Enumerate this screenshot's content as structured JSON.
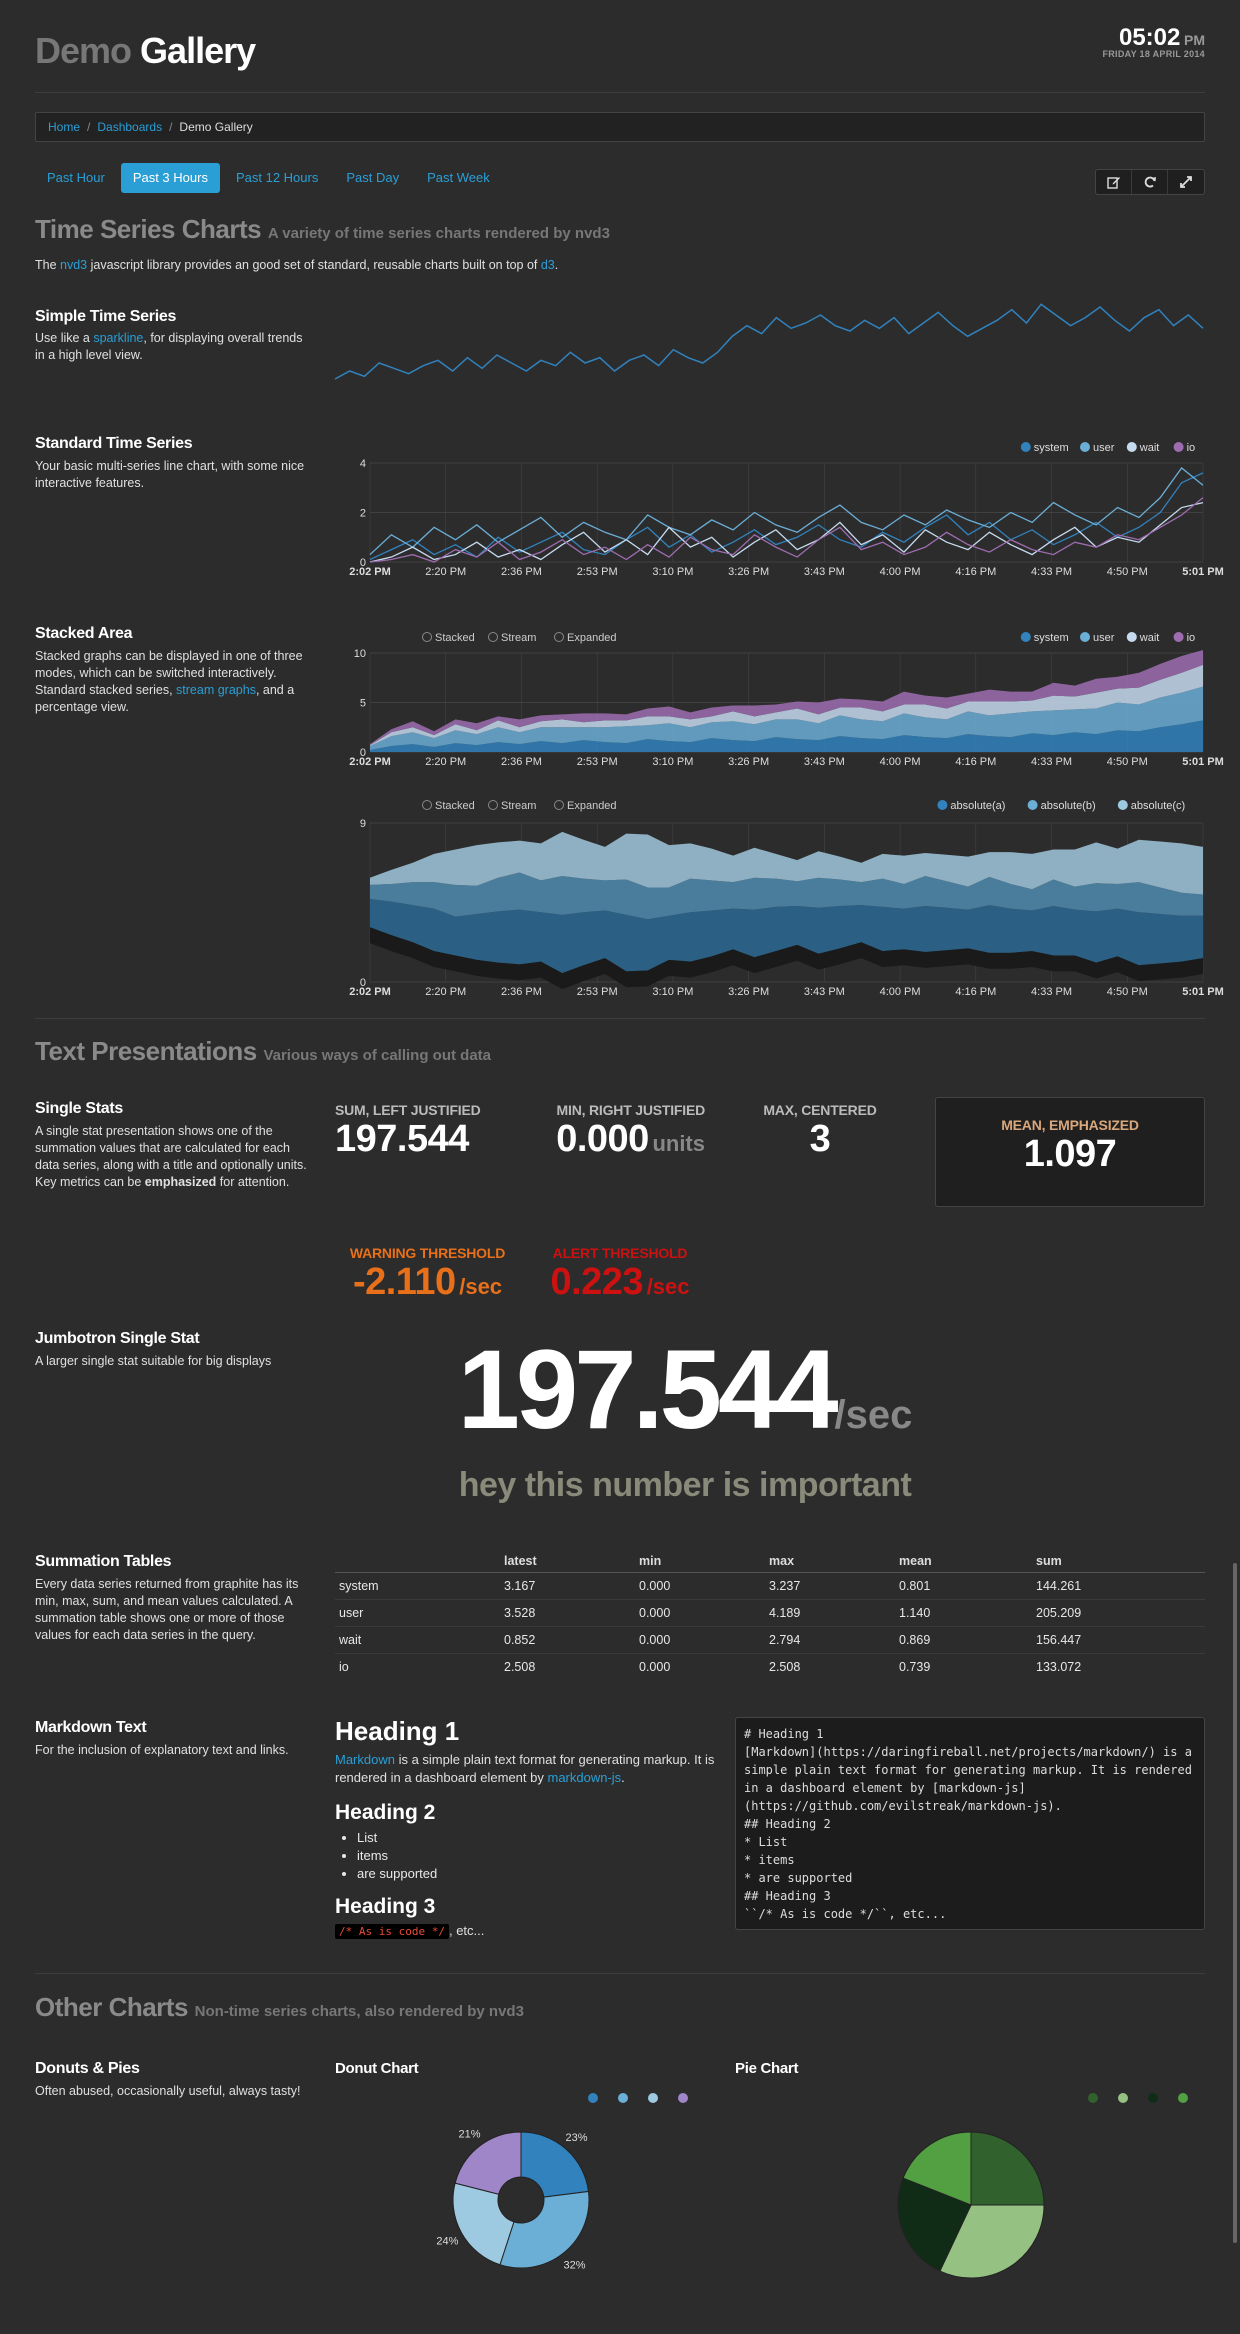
{
  "header": {
    "title_part1": "Demo",
    "title_part2": "Gallery",
    "time": "05:02",
    "ampm": "PM",
    "date": "FRIDAY 18 APRIL 2014"
  },
  "breadcrumb": {
    "items": [
      "Home",
      "Dashboards"
    ],
    "current": "Demo Gallery"
  },
  "time_ranges": [
    {
      "label": "Past Hour",
      "active": false
    },
    {
      "label": "Past 3 Hours",
      "active": true
    },
    {
      "label": "Past 12 Hours",
      "active": false
    },
    {
      "label": "Past Day",
      "active": false
    },
    {
      "label": "Past Week",
      "active": false
    }
  ],
  "toolbar": {
    "icons": [
      "edit-icon",
      "refresh-icon",
      "fullscreen-icon"
    ]
  },
  "time_series": {
    "title": "Time Series Charts",
    "subtitle": "A variety of time series charts rendered by nvd3",
    "intro_pre": "The ",
    "intro_link1": "nvd3",
    "intro_mid": " javascript library provides an good set of standard, reusable charts built on top of ",
    "intro_link2": "d3",
    "intro_post": ".",
    "simple": {
      "title": "Simple Time Series",
      "desc_pre": "Use like a ",
      "desc_link": "sparkline",
      "desc_post": ", for displaying overall trends in a high level view."
    },
    "standard": {
      "title": "Standard Time Series",
      "desc": "Your basic multi-series line chart, with some nice interactive features."
    },
    "stacked": {
      "title": "Stacked Area",
      "desc_pre": "Stacked graphs can be displayed in one of three modes, which can be switched interactively. Standard stacked series, ",
      "desc_link": "stream graphs",
      "desc_post": ", and a percentage view."
    },
    "x_ticks": [
      "2:02 PM",
      "2:20 PM",
      "2:36 PM",
      "2:53 PM",
      "3:10 PM",
      "3:26 PM",
      "3:43 PM",
      "4:00 PM",
      "4:16 PM",
      "4:33 PM",
      "4:50 PM",
      "5:01 PM"
    ],
    "modes": [
      "Stacked",
      "Stream",
      "Expanded"
    ]
  },
  "chart_data": [
    {
      "type": "line",
      "series": [
        {
          "values": [
            0.6,
            0.9,
            0.7,
            1.2,
            1.0,
            0.8,
            1.1,
            1.3,
            0.9,
            1.4,
            1.0,
            1.5,
            1.2,
            0.9,
            1.3,
            1.1,
            1.6,
            1.2,
            1.4,
            0.9,
            1.3,
            1.5,
            1.1,
            1.7,
            1.4,
            1.2,
            1.6,
            2.2,
            2.6,
            2.3,
            2.9,
            2.5,
            2.7,
            3.0,
            2.6,
            2.4,
            2.8,
            2.5,
            2.9,
            2.3,
            2.7,
            3.1,
            2.6,
            2.2,
            2.5,
            2.8,
            3.2,
            2.7,
            3.4,
            3.0,
            2.6,
            2.9,
            3.3,
            2.8,
            2.4,
            2.9,
            3.2,
            2.6,
            3.0,
            2.5
          ]
        }
      ]
    },
    {
      "type": "line",
      "ylim": [
        0,
        4
      ],
      "y_ticks": [
        "0",
        "2",
        "4"
      ],
      "legend_position": "top-right",
      "series": [
        {
          "name": "system",
          "color": "#3182bd",
          "values": [
            0.1,
            0.5,
            0.9,
            0.3,
            0.7,
            0.2,
            1.0,
            0.4,
            0.8,
            1.2,
            0.5,
            0.3,
            0.9,
            1.4,
            0.6,
            1.1,
            0.4,
            0.8,
            1.3,
            0.7,
            1.0,
            1.5,
            0.9,
            0.6,
            1.2,
            0.8,
            1.4,
            1.9,
            1.1,
            1.6,
            0.9,
            1.3,
            0.7,
            1.1,
            1.6,
            1.0,
            1.4,
            2.0,
            3.2,
            3.6
          ]
        },
        {
          "name": "user",
          "color": "#6baed6",
          "values": [
            0.3,
            1.1,
            0.6,
            1.4,
            0.9,
            1.5,
            0.8,
            1.3,
            1.8,
            1.0,
            1.6,
            1.2,
            0.9,
            1.9,
            1.4,
            1.1,
            1.7,
            1.3,
            2.0,
            1.5,
            1.2,
            1.8,
            2.3,
            1.6,
            1.3,
            1.9,
            1.5,
            2.1,
            1.7,
            1.4,
            2.0,
            1.6,
            2.4,
            1.9,
            1.5,
            2.2,
            1.8,
            2.6,
            3.8,
            3.1
          ]
        },
        {
          "name": "wait",
          "color": "#c6dbef",
          "values": [
            0.0,
            0.2,
            0.6,
            0.1,
            0.3,
            0.8,
            0.2,
            0.5,
            0.1,
            0.7,
            1.2,
            0.4,
            0.9,
            0.3,
            1.4,
            0.6,
            1.0,
            0.2,
            0.8,
            1.3,
            0.5,
            0.9,
            1.6,
            0.7,
            1.1,
            0.4,
            1.3,
            0.8,
            0.5,
            1.2,
            0.7,
            0.3,
            0.9,
            1.4,
            0.6,
            1.0,
            0.8,
            1.5,
            2.2,
            2.4
          ]
        },
        {
          "name": "io",
          "color": "#9e6db0",
          "values": [
            0.0,
            0.1,
            0.3,
            0.0,
            0.5,
            0.2,
            0.8,
            0.1,
            0.4,
            0.9,
            0.3,
            0.6,
            0.1,
            0.7,
            0.2,
            1.0,
            0.5,
            0.3,
            1.1,
            0.6,
            0.2,
            0.9,
            1.4,
            0.5,
            0.8,
            0.3,
            0.6,
            1.2,
            0.7,
            0.4,
            0.9,
            0.5,
            0.3,
            0.8,
            0.6,
            1.1,
            0.9,
            1.4,
            1.9,
            2.6
          ]
        }
      ]
    },
    {
      "type": "area",
      "ylim": [
        0,
        10
      ],
      "y_ticks": [
        "0",
        "5",
        "10"
      ],
      "legend_position": "top-right",
      "series": [
        {
          "name": "system",
          "color": "#3182bd",
          "values": [
            0.2,
            0.6,
            0.8,
            0.5,
            0.9,
            0.7,
            1.0,
            0.8,
            1.1,
            0.9,
            1.2,
            1.0,
            0.9,
            1.3,
            1.1,
            1.0,
            1.4,
            1.2,
            1.1,
            1.5,
            1.3,
            1.2,
            1.6,
            1.4,
            1.3,
            1.7,
            1.5,
            1.4,
            1.8,
            1.6,
            1.5,
            1.9,
            1.7,
            2.0,
            1.8,
            2.2,
            2.1,
            2.5,
            2.8,
            3.2
          ]
        },
        {
          "name": "user",
          "color": "#6baed6",
          "values": [
            0.4,
            1.0,
            1.2,
            0.9,
            1.3,
            1.1,
            1.5,
            1.2,
            1.4,
            1.6,
            1.3,
            1.5,
            1.7,
            1.4,
            1.8,
            1.5,
            1.6,
            1.9,
            1.7,
            1.8,
            2.0,
            1.7,
            2.1,
            1.9,
            1.8,
            2.2,
            2.0,
            1.9,
            2.3,
            2.1,
            2.4,
            2.2,
            2.5,
            2.3,
            2.6,
            2.8,
            2.7,
            3.0,
            3.2,
            3.4
          ]
        },
        {
          "name": "wait",
          "color": "#c6dbef",
          "values": [
            0.1,
            0.4,
            0.5,
            0.3,
            0.6,
            0.4,
            0.7,
            0.5,
            0.6,
            0.8,
            0.5,
            0.7,
            0.6,
            0.9,
            0.7,
            0.8,
            0.6,
            1.0,
            0.8,
            0.7,
            1.1,
            0.9,
            0.8,
            1.2,
            1.0,
            0.9,
            1.3,
            1.1,
            1.0,
            1.4,
            1.2,
            1.1,
            1.5,
            1.3,
            1.6,
            1.4,
            1.7,
            1.8,
            2.0,
            2.2
          ]
        },
        {
          "name": "io",
          "color": "#9e6db0",
          "values": [
            0.1,
            0.3,
            0.6,
            0.4,
            0.5,
            0.7,
            0.4,
            0.8,
            0.6,
            0.5,
            0.9,
            0.7,
            0.6,
            0.8,
            1.0,
            0.7,
            0.9,
            0.6,
            1.1,
            0.8,
            0.7,
            1.2,
            0.9,
            0.8,
            1.0,
            1.3,
            0.9,
            1.1,
            0.8,
            1.2,
            1.0,
            0.9,
            1.3,
            1.1,
            1.4,
            1.2,
            1.5,
            1.6,
            1.7,
            1.5
          ]
        }
      ]
    },
    {
      "type": "area",
      "mode": "Stream",
      "ylim": [
        0,
        9
      ],
      "y_ticks": [
        "0",
        "9"
      ],
      "legend_position": "top-right",
      "series": [
        {
          "name": "absolute(a)",
          "color": "#3182bd",
          "values": [
            1.6,
            1.9,
            2.1,
            2.4,
            2.2,
            2.6,
            2.9,
            3.1,
            2.8,
            3.3,
            3.0,
            2.7,
            3.2,
            2.9,
            2.5,
            2.8,
            2.6,
            2.3,
            2.7,
            2.5,
            2.2,
            2.6,
            2.4,
            2.1,
            2.5,
            2.3,
            2.6,
            2.4,
            2.2,
            2.7,
            2.5,
            2.3,
            2.8,
            2.6,
            2.9,
            2.7,
            3.0,
            2.8,
            2.6,
            2.4
          ]
        },
        {
          "name": "absolute(b)",
          "color": "#6baed6",
          "values": [
            0.8,
            1.0,
            1.3,
            1.5,
            1.8,
            1.6,
            1.9,
            2.1,
            1.8,
            2.2,
            1.9,
            1.7,
            2.0,
            1.8,
            1.6,
            1.9,
            1.7,
            1.5,
            1.8,
            1.6,
            1.4,
            1.7,
            1.5,
            1.3,
            1.6,
            1.4,
            1.7,
            1.5,
            1.3,
            1.6,
            1.4,
            1.2,
            1.5,
            1.3,
            1.6,
            1.4,
            1.7,
            1.5,
            1.3,
            1.2
          ]
        },
        {
          "name": "absolute(c)",
          "color": "#9ecae1",
          "values": [
            0.4,
            0.8,
            1.1,
            1.6,
            2.0,
            2.3,
            2.0,
            1.8,
            2.1,
            2.5,
            2.2,
            1.9,
            2.6,
            3.0,
            2.4,
            2.0,
            1.8,
            1.5,
            1.7,
            1.4,
            1.2,
            1.5,
            1.3,
            1.1,
            1.4,
            1.6,
            1.3,
            1.5,
            1.7,
            1.4,
            1.8,
            2.0,
            1.7,
            2.1,
            2.3,
            2.0,
            2.4,
            2.6,
            2.8,
            2.7
          ]
        }
      ]
    },
    {
      "type": "pie",
      "donut": true,
      "labels_shown": [
        "23%",
        "32%",
        "24%",
        "21%"
      ],
      "values": [
        23,
        32,
        24,
        21
      ],
      "colors": [
        "#3182bd",
        "#6baed6",
        "#9ecae1",
        "#9e86c8"
      ]
    },
    {
      "type": "pie",
      "values": [
        25,
        32,
        24,
        19
      ],
      "colors": [
        "#31622d",
        "#95c183",
        "#112c16",
        "#53a043"
      ]
    }
  ],
  "text_presentations": {
    "title": "Text Presentations",
    "subtitle": "Various ways of calling out data",
    "single_stats": {
      "title": "Single Stats",
      "desc_pre": "A single stat presentation shows one of the summation values that are calculated for each data series, along with a title and optionally units. Key metrics can be ",
      "desc_bold": "emphasized",
      "desc_post": " for attention."
    },
    "stats": {
      "sum": {
        "title": "SUM, LEFT JUSTIFIED",
        "value": "197.544"
      },
      "min": {
        "title": "MIN, RIGHT JUSTIFIED",
        "value": "0.000",
        "unit": "units"
      },
      "max": {
        "title": "MAX, CENTERED",
        "value": "3"
      },
      "mean": {
        "title": "MEAN, EMPHASIZED",
        "value": "1.097"
      },
      "warning": {
        "title": "WARNING THRESHOLD",
        "value": "-2.110",
        "unit": "/sec",
        "color": "#e8701a"
      },
      "alert": {
        "title": "ALERT THRESHOLD",
        "value": "0.223",
        "unit": "/sec",
        "color": "#cc1111"
      }
    },
    "jumbotron": {
      "title": "Jumbotron Single Stat",
      "desc": "A larger single stat suitable for big displays",
      "value": "197.544",
      "unit": "/sec",
      "caption": "hey this number is important"
    },
    "summation": {
      "title": "Summation Tables",
      "desc": "Every data series returned from graphite has its min, max, sum, and mean values calculated. A summation table shows one or more of those values for each data series in the query.",
      "columns": [
        "",
        "latest",
        "min",
        "max",
        "mean",
        "sum"
      ],
      "rows": [
        [
          "system",
          "3.167",
          "0.000",
          "3.237",
          "0.801",
          "144.261"
        ],
        [
          "user",
          "3.528",
          "0.000",
          "4.189",
          "1.140",
          "205.209"
        ],
        [
          "wait",
          "0.852",
          "0.000",
          "2.794",
          "0.869",
          "156.447"
        ],
        [
          "io",
          "2.508",
          "0.000",
          "2.508",
          "0.739",
          "133.072"
        ]
      ]
    },
    "markdown": {
      "title": "Markdown Text",
      "desc": "For the inclusion of explanatory text and links.",
      "h1": "Heading 1",
      "p_link1": "Markdown",
      "p_mid": " is a simple plain text format for generating markup. It is rendered in a dashboard element by ",
      "p_link2": "markdown-js",
      "p_post": ".",
      "h2": "Heading 2",
      "list": [
        "List",
        "items",
        "are supported"
      ],
      "h3": "Heading 3",
      "code": "/* As is code */",
      "code_post": ", etc...",
      "source": "# Heading 1\n[Markdown](https://daringfireball.net/projects/markdown/) is a simple plain text format for generating markup. It is rendered in a dashboard element by [markdown-js](https://github.com/evilstreak/markdown-js).\n## Heading 2\n* List\n* items\n* are supported\n## Heading 3\n``/* As is code */``, etc..."
    }
  },
  "other_charts": {
    "title": "Other Charts",
    "subtitle": "Non-time series charts, also rendered by nvd3",
    "donuts": {
      "title": "Donuts & Pies",
      "desc": "Often abused, occasionally useful, always tasty!"
    },
    "donut_title": "Donut Chart",
    "pie_title": "Pie Chart"
  }
}
